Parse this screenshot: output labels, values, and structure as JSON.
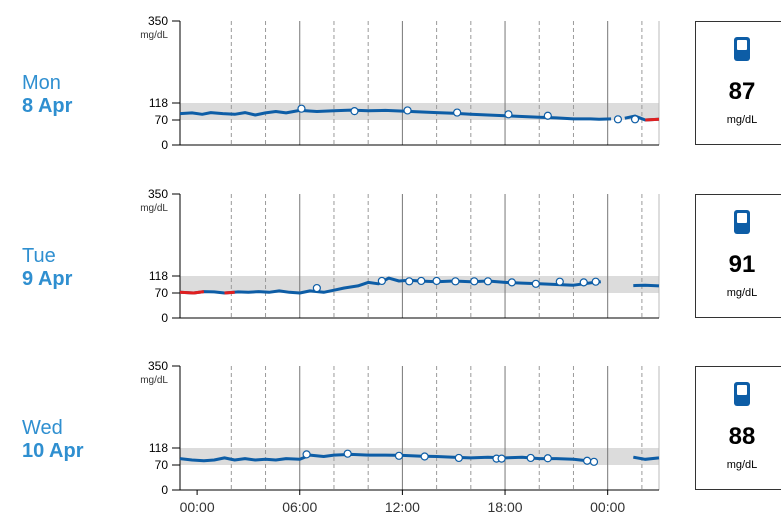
{
  "chart_data": {
    "type": "line",
    "y_unit": "mg/dL",
    "y_ticks": [
      0,
      70,
      118,
      350
    ],
    "ylim": [
      0,
      350
    ],
    "target_range": [
      70,
      118
    ],
    "x_ticks": [
      "00:00",
      "06:00",
      "12:00",
      "18:00",
      "00:00"
    ],
    "x_range_hours": [
      -1,
      27
    ],
    "colors": {
      "line": "#0d5da6",
      "low": "#e02020",
      "band": "#dcdcdc",
      "label": "#2f8fd0",
      "marker_stroke": "#0d5da6"
    },
    "days": [
      {
        "day": "Mon",
        "date": "8 Apr",
        "reading": "87",
        "reading_unit": "mg/dL",
        "series": [
          [
            [
              -1,
              88
            ],
            [
              0,
              90
            ],
            [
              1,
              86
            ],
            [
              2,
              91
            ],
            [
              3,
              87
            ],
            [
              4,
              85
            ],
            [
              5,
              90
            ],
            [
              6,
              84
            ],
            [
              7,
              90
            ],
            [
              8,
              94
            ],
            [
              9,
              90
            ],
            [
              10,
              97
            ],
            [
              11,
              94
            ],
            [
              12,
              96
            ],
            [
              13,
              98
            ],
            [
              14,
              96
            ],
            [
              15,
              97
            ],
            [
              16,
              96
            ],
            [
              17,
              94
            ],
            [
              18,
              92
            ],
            [
              19,
              90
            ],
            [
              20,
              88
            ],
            [
              21,
              86
            ],
            [
              22,
              84
            ],
            [
              23,
              82
            ],
            [
              24,
              80
            ],
            [
              25,
              79
            ],
            [
              26,
              78
            ],
            [
              27,
              76
            ]
          ],
          [
            [
              -1,
              78
            ],
            [
              0,
              77
            ],
            [
              1,
              75
            ],
            [
              2,
              73
            ],
            [
              3,
              75
            ],
            [
              4,
              74
            ]
          ],
          [
            [
              -1,
              74
            ],
            [
              0,
              75
            ]
          ]
        ],
        "series_hours": [
          [
            -1,
            -0.5,
            0,
            0.5,
            1,
            1.5,
            2,
            2.5,
            3,
            3.5,
            4,
            4.5,
            5,
            5.5,
            6,
            7,
            8,
            9,
            10,
            11,
            12,
            13,
            14,
            15,
            16,
            17,
            18,
            19,
            20
          ],
          [
            20,
            21,
            22,
            23,
            23.5,
            24
          ],
          [
            24.5,
            25
          ]
        ],
        "main_line": [
          [
            -1,
            88
          ],
          [
            -0.3,
            90
          ],
          [
            0.3,
            86
          ],
          [
            0.8,
            91
          ],
          [
            1.5,
            88
          ],
          [
            2.2,
            86
          ],
          [
            2.8,
            91
          ],
          [
            3.4,
            84
          ],
          [
            4,
            90
          ],
          [
            4.6,
            94
          ],
          [
            5.2,
            90
          ],
          [
            6,
            97
          ],
          [
            7,
            94
          ],
          [
            8,
            96
          ],
          [
            9,
            98
          ],
          [
            10,
            96
          ],
          [
            11,
            97
          ],
          [
            12,
            95
          ],
          [
            13,
            93
          ],
          [
            14,
            91
          ],
          [
            15,
            89
          ],
          [
            16,
            86
          ],
          [
            17,
            84
          ],
          [
            18,
            82
          ],
          [
            19,
            80
          ],
          [
            20,
            78
          ],
          [
            21,
            76
          ],
          [
            22,
            73
          ],
          [
            23,
            73
          ],
          [
            23.5,
            72
          ],
          [
            24.2,
            73
          ]
        ],
        "gap_line": [
          [
            25,
            75
          ],
          [
            25.6,
            81
          ],
          [
            26.2,
            70
          ],
          [
            27,
            72
          ]
        ],
        "low_segment": [
          [
            26.2,
            70
          ],
          [
            27,
            72
          ]
        ],
        "markers": [
          [
            6.1,
            102
          ],
          [
            9.2,
            95
          ],
          [
            12.3,
            97
          ],
          [
            15.2,
            91
          ],
          [
            18.2,
            86
          ],
          [
            20.5,
            82
          ],
          [
            24.6,
            72
          ],
          [
            25.6,
            72
          ]
        ]
      },
      {
        "day": "Tue",
        "date": "9 Apr",
        "reading": "91",
        "reading_unit": "mg/dL",
        "main_line": [
          [
            -1,
            72
          ],
          [
            -0.2,
            70
          ],
          [
            0.4,
            74
          ],
          [
            1,
            73
          ],
          [
            1.6,
            70
          ],
          [
            2.4,
            73
          ],
          [
            3,
            72
          ],
          [
            3.6,
            74
          ],
          [
            4.2,
            72
          ],
          [
            4.8,
            76
          ],
          [
            5.4,
            72
          ],
          [
            6,
            70
          ],
          [
            6.6,
            76
          ],
          [
            7.4,
            72
          ],
          [
            8,
            78
          ],
          [
            8.6,
            84
          ],
          [
            9.4,
            90
          ],
          [
            10,
            100
          ],
          [
            10.6,
            96
          ],
          [
            11.2,
            112
          ],
          [
            11.8,
            104
          ],
          [
            12.4,
            106
          ],
          [
            13,
            104
          ],
          [
            14,
            102
          ],
          [
            15,
            104
          ],
          [
            16,
            102
          ],
          [
            17,
            104
          ],
          [
            18,
            100
          ],
          [
            19,
            98
          ],
          [
            20,
            96
          ],
          [
            21,
            94
          ],
          [
            22,
            92
          ],
          [
            22.6,
            96
          ],
          [
            23.2,
            100
          ],
          [
            23.6,
            102
          ]
        ],
        "right_line": [
          [
            25.5,
            91
          ],
          [
            26.2,
            92
          ],
          [
            27,
            90
          ]
        ],
        "low_segment": [
          [
            -1,
            72
          ],
          [
            -0.2,
            70
          ],
          [
            0.4,
            74
          ]
        ],
        "low_segment2": [
          [
            1.6,
            70
          ],
          [
            2.2,
            72
          ]
        ],
        "markers": [
          [
            7,
            84
          ],
          [
            10.8,
            104
          ],
          [
            12.4,
            103
          ],
          [
            13.1,
            104
          ],
          [
            14,
            104
          ],
          [
            15.1,
            103
          ],
          [
            16.2,
            103
          ],
          [
            17,
            103
          ],
          [
            18.4,
            100
          ],
          [
            19.8,
            96
          ],
          [
            21.2,
            102
          ],
          [
            22.6,
            100
          ],
          [
            23.3,
            102
          ]
        ]
      },
      {
        "day": "Wed",
        "date": "10 Apr",
        "reading": "88",
        "reading_unit": "mg/dL",
        "main_line": [
          [
            -1,
            88
          ],
          [
            -0.3,
            84
          ],
          [
            0.4,
            82
          ],
          [
            1,
            84
          ],
          [
            1.6,
            90
          ],
          [
            2.2,
            84
          ],
          [
            2.8,
            88
          ],
          [
            3.4,
            84
          ],
          [
            4,
            86
          ],
          [
            4.6,
            84
          ],
          [
            5.2,
            88
          ],
          [
            6,
            86
          ],
          [
            6.6,
            98
          ],
          [
            7.4,
            94
          ],
          [
            8,
            98
          ],
          [
            9,
            100
          ],
          [
            10,
            98
          ],
          [
            11,
            98
          ],
          [
            12,
            97
          ],
          [
            13,
            95
          ],
          [
            14,
            94
          ],
          [
            15,
            92
          ],
          [
            16,
            90
          ],
          [
            17,
            92
          ],
          [
            18,
            90
          ],
          [
            19,
            92
          ],
          [
            20,
            88
          ],
          [
            21,
            88
          ],
          [
            22,
            86
          ],
          [
            22.8,
            82
          ]
        ],
        "right_line": [
          [
            25.5,
            92
          ],
          [
            26.2,
            86
          ],
          [
            27,
            90
          ]
        ],
        "markers": [
          [
            6.4,
            100
          ],
          [
            8.8,
            102
          ],
          [
            11.8,
            96
          ],
          [
            13.3,
            94
          ],
          [
            15.3,
            90
          ],
          [
            17.5,
            88
          ],
          [
            17.8,
            88
          ],
          [
            19.5,
            90
          ],
          [
            20.5,
            89
          ],
          [
            22.8,
            82
          ],
          [
            23.2,
            79
          ]
        ]
      }
    ]
  }
}
